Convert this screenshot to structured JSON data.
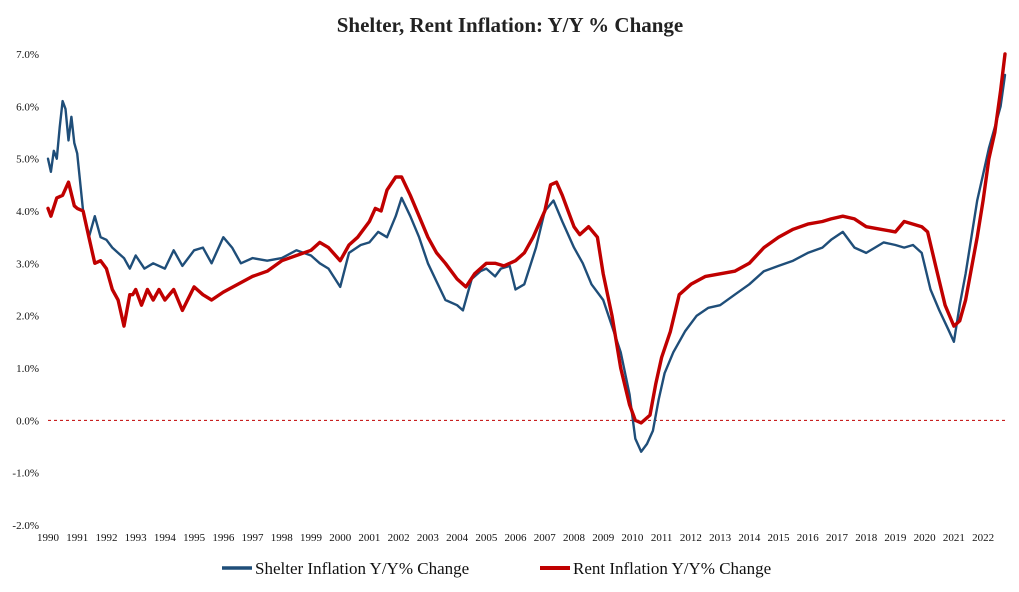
{
  "chart_data": {
    "type": "line",
    "title": "Shelter, Rent Inflation: Y/Y % Change",
    "xlabel": "",
    "ylabel": "",
    "xlim": [
      1990,
      2022.75
    ],
    "ylim": [
      -2.0,
      7.0
    ],
    "y_ticks": [
      -2,
      -1,
      0,
      1,
      2,
      3,
      4,
      5,
      6,
      7
    ],
    "y_tick_labels": [
      "-2.0%",
      "-1.0%",
      "0.0%",
      "1.0%",
      "2.0%",
      "3.0%",
      "4.0%",
      "5.0%",
      "6.0%",
      "7.0%"
    ],
    "x_tick_labels": [
      "1990",
      "1991",
      "1992",
      "1993",
      "1994",
      "1995",
      "1996",
      "1997",
      "1998",
      "1999",
      "2000",
      "2001",
      "2002",
      "2003",
      "2004",
      "2005",
      "2006",
      "2007",
      "2008",
      "2009",
      "2010",
      "2011",
      "2012",
      "2013",
      "2014",
      "2015",
      "2016",
      "2017",
      "2018",
      "2019",
      "2020",
      "2021",
      "2022"
    ],
    "reference_line": {
      "y": 0,
      "style": "dashed",
      "color": "#c00000"
    },
    "grid": false,
    "legend_position": "bottom",
    "series": [
      {
        "name": "Shelter Inflation Y/Y% Change",
        "color": "#1f4e79",
        "x": [
          1990.0,
          1990.1,
          1990.2,
          1990.3,
          1990.4,
          1990.5,
          1990.6,
          1990.7,
          1990.8,
          1990.9,
          1991.0,
          1991.2,
          1991.4,
          1991.6,
          1991.8,
          1992.0,
          1992.2,
          1992.4,
          1992.6,
          1992.8,
          1993.0,
          1993.3,
          1993.6,
          1994.0,
          1994.3,
          1994.6,
          1995.0,
          1995.3,
          1995.6,
          1996.0,
          1996.3,
          1996.6,
          1997.0,
          1997.5,
          1998.0,
          1998.5,
          1999.0,
          1999.3,
          1999.6,
          2000.0,
          2000.3,
          2000.7,
          2001.0,
          2001.3,
          2001.6,
          2001.9,
          2002.1,
          2002.4,
          2002.7,
          2003.0,
          2003.3,
          2003.6,
          2004.0,
          2004.2,
          2004.5,
          2004.8,
          2005.0,
          2005.3,
          2005.5,
          2005.8,
          2006.0,
          2006.3,
          2006.7,
          2007.0,
          2007.3,
          2007.6,
          2008.0,
          2008.3,
          2008.6,
          2009.0,
          2009.3,
          2009.6,
          2009.9,
          2010.1,
          2010.3,
          2010.5,
          2010.7,
          2010.9,
          2011.1,
          2011.4,
          2011.8,
          2012.2,
          2012.6,
          2013.0,
          2013.5,
          2014.0,
          2014.5,
          2015.0,
          2015.5,
          2016.0,
          2016.5,
          2016.8,
          2017.2,
          2017.6,
          2018.0,
          2018.3,
          2018.6,
          2019.0,
          2019.3,
          2019.6,
          2019.9,
          2020.2,
          2020.5,
          2020.8,
          2021.0,
          2021.2,
          2021.4,
          2021.6,
          2021.8,
          2022.0,
          2022.2,
          2022.4,
          2022.6,
          2022.75
        ],
        "y": [
          5.0,
          4.75,
          5.15,
          5.0,
          5.6,
          6.1,
          5.95,
          5.35,
          5.8,
          5.3,
          5.1,
          4.0,
          3.5,
          3.9,
          3.5,
          3.45,
          3.3,
          3.2,
          3.1,
          2.9,
          3.15,
          2.9,
          3.0,
          2.9,
          3.25,
          2.95,
          3.25,
          3.3,
          3.0,
          3.5,
          3.3,
          3.0,
          3.1,
          3.05,
          3.1,
          3.25,
          3.15,
          3.0,
          2.9,
          2.55,
          3.2,
          3.35,
          3.4,
          3.6,
          3.5,
          3.9,
          4.25,
          3.9,
          3.5,
          3.0,
          2.65,
          2.3,
          2.2,
          2.1,
          2.7,
          2.85,
          2.9,
          2.75,
          2.9,
          2.95,
          2.5,
          2.6,
          3.3,
          4.0,
          4.2,
          3.8,
          3.3,
          3.0,
          2.6,
          2.3,
          1.8,
          1.3,
          0.5,
          -0.35,
          -0.6,
          -0.45,
          -0.2,
          0.4,
          0.9,
          1.3,
          1.7,
          2.0,
          2.15,
          2.2,
          2.4,
          2.6,
          2.85,
          2.95,
          3.05,
          3.2,
          3.3,
          3.45,
          3.6,
          3.3,
          3.2,
          3.3,
          3.4,
          3.35,
          3.3,
          3.35,
          3.2,
          2.5,
          2.1,
          1.75,
          1.5,
          2.2,
          2.8,
          3.5,
          4.2,
          4.7,
          5.2,
          5.6,
          6.0,
          6.6
        ]
      },
      {
        "name": "Rent Inflation Y/Y% Change",
        "color": "#c00000",
        "x": [
          1990.0,
          1990.1,
          1990.3,
          1990.5,
          1990.7,
          1990.9,
          1991.0,
          1991.2,
          1991.4,
          1991.6,
          1991.8,
          1992.0,
          1992.2,
          1992.4,
          1992.6,
          1992.8,
          1992.9,
          1993.0,
          1993.2,
          1993.4,
          1993.6,
          1993.8,
          1994.0,
          1994.3,
          1994.6,
          1995.0,
          1995.3,
          1995.6,
          1996.0,
          1996.5,
          1997.0,
          1997.5,
          1998.0,
          1998.5,
          1999.0,
          1999.3,
          1999.6,
          2000.0,
          2000.3,
          2000.6,
          2001.0,
          2001.2,
          2001.4,
          2001.6,
          2001.9,
          2002.1,
          2002.4,
          2002.7,
          2003.0,
          2003.3,
          2003.6,
          2004.0,
          2004.3,
          2004.6,
          2005.0,
          2005.3,
          2005.6,
          2006.0,
          2006.3,
          2006.6,
          2007.0,
          2007.2,
          2007.4,
          2007.6,
          2007.8,
          2008.0,
          2008.2,
          2008.5,
          2008.8,
          2009.0,
          2009.3,
          2009.6,
          2009.9,
          2010.1,
          2010.3,
          2010.6,
          2010.8,
          2011.0,
          2011.3,
          2011.6,
          2012.0,
          2012.5,
          2013.0,
          2013.5,
          2014.0,
          2014.5,
          2015.0,
          2015.5,
          2016.0,
          2016.5,
          2016.8,
          2017.2,
          2017.6,
          2018.0,
          2018.5,
          2019.0,
          2019.3,
          2019.6,
          2019.9,
          2020.1,
          2020.4,
          2020.7,
          2021.0,
          2021.2,
          2021.4,
          2021.6,
          2021.8,
          2022.0,
          2022.2,
          2022.4,
          2022.6,
          2022.75
        ],
        "y": [
          4.05,
          3.9,
          4.25,
          4.3,
          4.55,
          4.1,
          4.05,
          4.0,
          3.5,
          3.0,
          3.05,
          2.9,
          2.5,
          2.3,
          1.8,
          2.4,
          2.4,
          2.5,
          2.2,
          2.5,
          2.3,
          2.5,
          2.3,
          2.5,
          2.1,
          2.55,
          2.4,
          2.3,
          2.45,
          2.6,
          2.75,
          2.85,
          3.05,
          3.15,
          3.25,
          3.4,
          3.3,
          3.05,
          3.35,
          3.5,
          3.8,
          4.05,
          4.0,
          4.4,
          4.65,
          4.65,
          4.3,
          3.9,
          3.5,
          3.2,
          3.0,
          2.7,
          2.55,
          2.8,
          3.0,
          3.0,
          2.95,
          3.05,
          3.2,
          3.5,
          4.0,
          4.5,
          4.55,
          4.3,
          4.0,
          3.7,
          3.55,
          3.7,
          3.5,
          2.8,
          2.0,
          1.0,
          0.3,
          0.0,
          -0.05,
          0.1,
          0.7,
          1.2,
          1.7,
          2.4,
          2.6,
          2.75,
          2.8,
          2.85,
          3.0,
          3.3,
          3.5,
          3.65,
          3.75,
          3.8,
          3.85,
          3.9,
          3.85,
          3.7,
          3.65,
          3.6,
          3.8,
          3.75,
          3.7,
          3.6,
          2.9,
          2.2,
          1.8,
          1.9,
          2.3,
          2.9,
          3.5,
          4.2,
          5.0,
          5.5,
          6.3,
          7.0
        ]
      }
    ]
  }
}
